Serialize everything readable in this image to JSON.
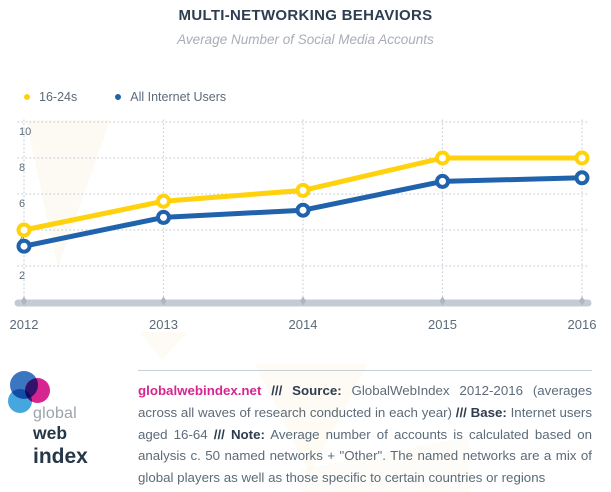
{
  "header": {
    "title": "MULTI-NETWORKING BEHAVIORS",
    "subtitle": "Average Number of Social Media Accounts"
  },
  "legend": {
    "items": [
      {
        "label": "16-24s",
        "color": "#FFD20D"
      },
      {
        "label": "All Internet Users",
        "color": "#2062AB"
      }
    ]
  },
  "chart_data": {
    "type": "line",
    "x": [
      "2012",
      "2013",
      "2014",
      "2015",
      "2016"
    ],
    "series": [
      {
        "name": "16-24s",
        "color": "#FFD20D",
        "values": [
          4.0,
          5.6,
          6.2,
          8.0,
          8.0
        ]
      },
      {
        "name": "All Internet Users",
        "color": "#2062AB",
        "values": [
          3.1,
          4.7,
          5.1,
          6.7,
          6.9
        ]
      }
    ],
    "title": "MULTI-NETWORKING BEHAVIORS",
    "subtitle": "Average Number of Social Media Accounts",
    "xlabel": "",
    "ylabel": "",
    "yticks": [
      2,
      4,
      6,
      8,
      10
    ],
    "ylim": [
      0,
      10.2
    ],
    "grid": "dotted",
    "legend_position": "top-left",
    "axis_text_color": "#5C6B7A",
    "gridline_color": "#C9CFD7",
    "axis_bar_color": "#C5CBD4",
    "tick_color": "#AEB6C2"
  },
  "footer": {
    "logo": {
      "line1": "global",
      "line2": "web",
      "line3": "index",
      "circle_colors": {
        "blue": "#3D76C0",
        "pink": "#D6258E",
        "light_blue": "#45A7DE"
      }
    },
    "segments": [
      "globalwebindex.net",
      " /// ",
      "Source:",
      " GlobalWebIndex 2012-2016 (averages across all waves of research conducted in each year) ",
      "/// ",
      "Base:",
      " Internet users aged 16-64 ",
      "/// ",
      "Note:",
      " Average number of accounts is calculated based on analysis c. 50 named networks + \"Other\". The named networks are a mix of global players as well as those specific to certain countries or regions"
    ]
  }
}
